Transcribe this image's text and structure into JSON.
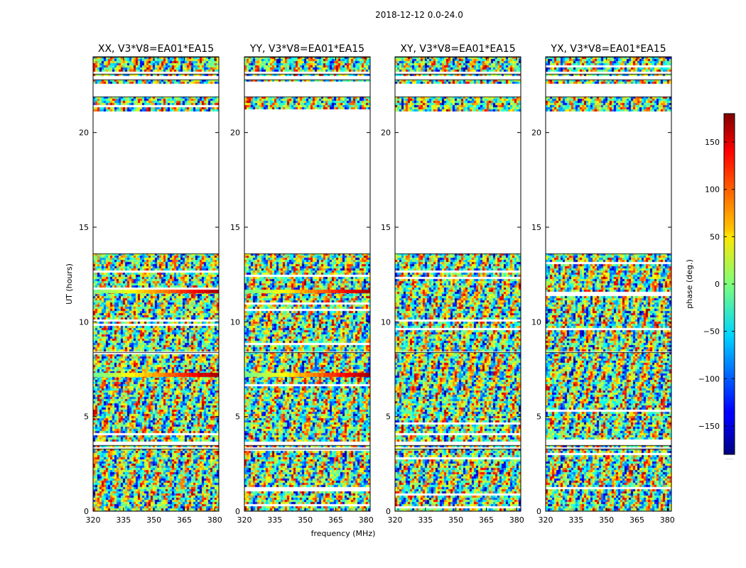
{
  "suptitle": "2018-12-12 0.0-24.0",
  "xlabel": "frequency (MHz)",
  "ylabel": "UT (hours)",
  "cbar_label": "phase (deg.)",
  "cbar_note": ".....",
  "chart_data": {
    "type": "heatmap",
    "title": "2018-12-12 0.0-24.0",
    "xlabel": "frequency (MHz)",
    "ylabel": "UT (hours)",
    "xlim": [
      320,
      382
    ],
    "ylim": [
      0,
      24
    ],
    "xticks": [
      320,
      335,
      350,
      365,
      380
    ],
    "yticks": [
      0,
      5,
      10,
      15,
      20
    ],
    "colorbar": {
      "label": "phase (deg.)",
      "range": [
        -180,
        180
      ],
      "ticks": [
        150,
        100,
        50,
        0,
        -50,
        -100,
        -150
      ],
      "tick_labels": [
        "150",
        "100",
        "50",
        "0",
        "−50",
        "−100",
        "−150"
      ],
      "colormap": "jet"
    },
    "panels": [
      {
        "title": "XX, V3*V8=EA01*EA15"
      },
      {
        "title": "YY, V3*V8=EA01*EA15"
      },
      {
        "title": "XY, V3*V8=EA01*EA15"
      },
      {
        "title": "YX, V3*V8=EA01*EA15"
      }
    ],
    "data_time_ranges_hours": [
      [
        0.0,
        3.3
      ],
      [
        3.4,
        3.5
      ],
      [
        3.7,
        8.4
      ],
      [
        8.5,
        13.6
      ],
      [
        21.2,
        21.9
      ],
      [
        22.6,
        22.8
      ],
      [
        23.0,
        23.1
      ],
      [
        23.3,
        24.0
      ]
    ],
    "coherent_bands": [
      {
        "panels": [
          0,
          1
        ],
        "range_hours": [
          7.1,
          7.3
        ]
      },
      {
        "panels": [
          0,
          1
        ],
        "range_hours": [
          11.5,
          11.7
        ]
      }
    ]
  }
}
